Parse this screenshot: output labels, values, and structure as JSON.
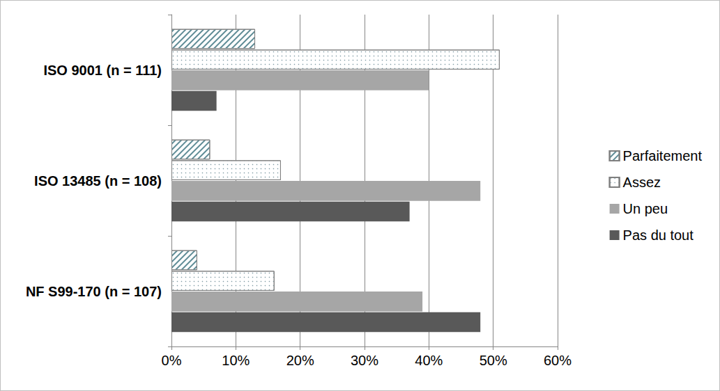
{
  "chart_data": {
    "type": "bar",
    "orientation": "horizontal",
    "categories": [
      "ISO 9001 (n = 111)",
      "ISO 13485 (n = 108)",
      "NF S99-170 (n = 107)"
    ],
    "series": [
      {
        "name": "Parfaitement",
        "color": "#ffffff",
        "values": [
          13,
          6,
          4
        ]
      },
      {
        "name": "Assez",
        "color": "#ffffff",
        "values": [
          51,
          17,
          16
        ]
      },
      {
        "name": "Un peu",
        "color": "#a6a6a6",
        "values": [
          40,
          48,
          39
        ]
      },
      {
        "name": "Pas du tout",
        "color": "#595959",
        "values": [
          7,
          37,
          48
        ]
      }
    ],
    "xlim": [
      0,
      60
    ],
    "xticks": [
      {
        "value": 0,
        "label": "0%"
      },
      {
        "value": 10,
        "label": "10%"
      },
      {
        "value": 20,
        "label": "20%"
      },
      {
        "value": 30,
        "label": "30%"
      },
      {
        "value": 40,
        "label": "40%"
      },
      {
        "value": 50,
        "label": "50%"
      },
      {
        "value": 60,
        "label": "60%"
      }
    ],
    "grid": true,
    "legend": "right"
  }
}
